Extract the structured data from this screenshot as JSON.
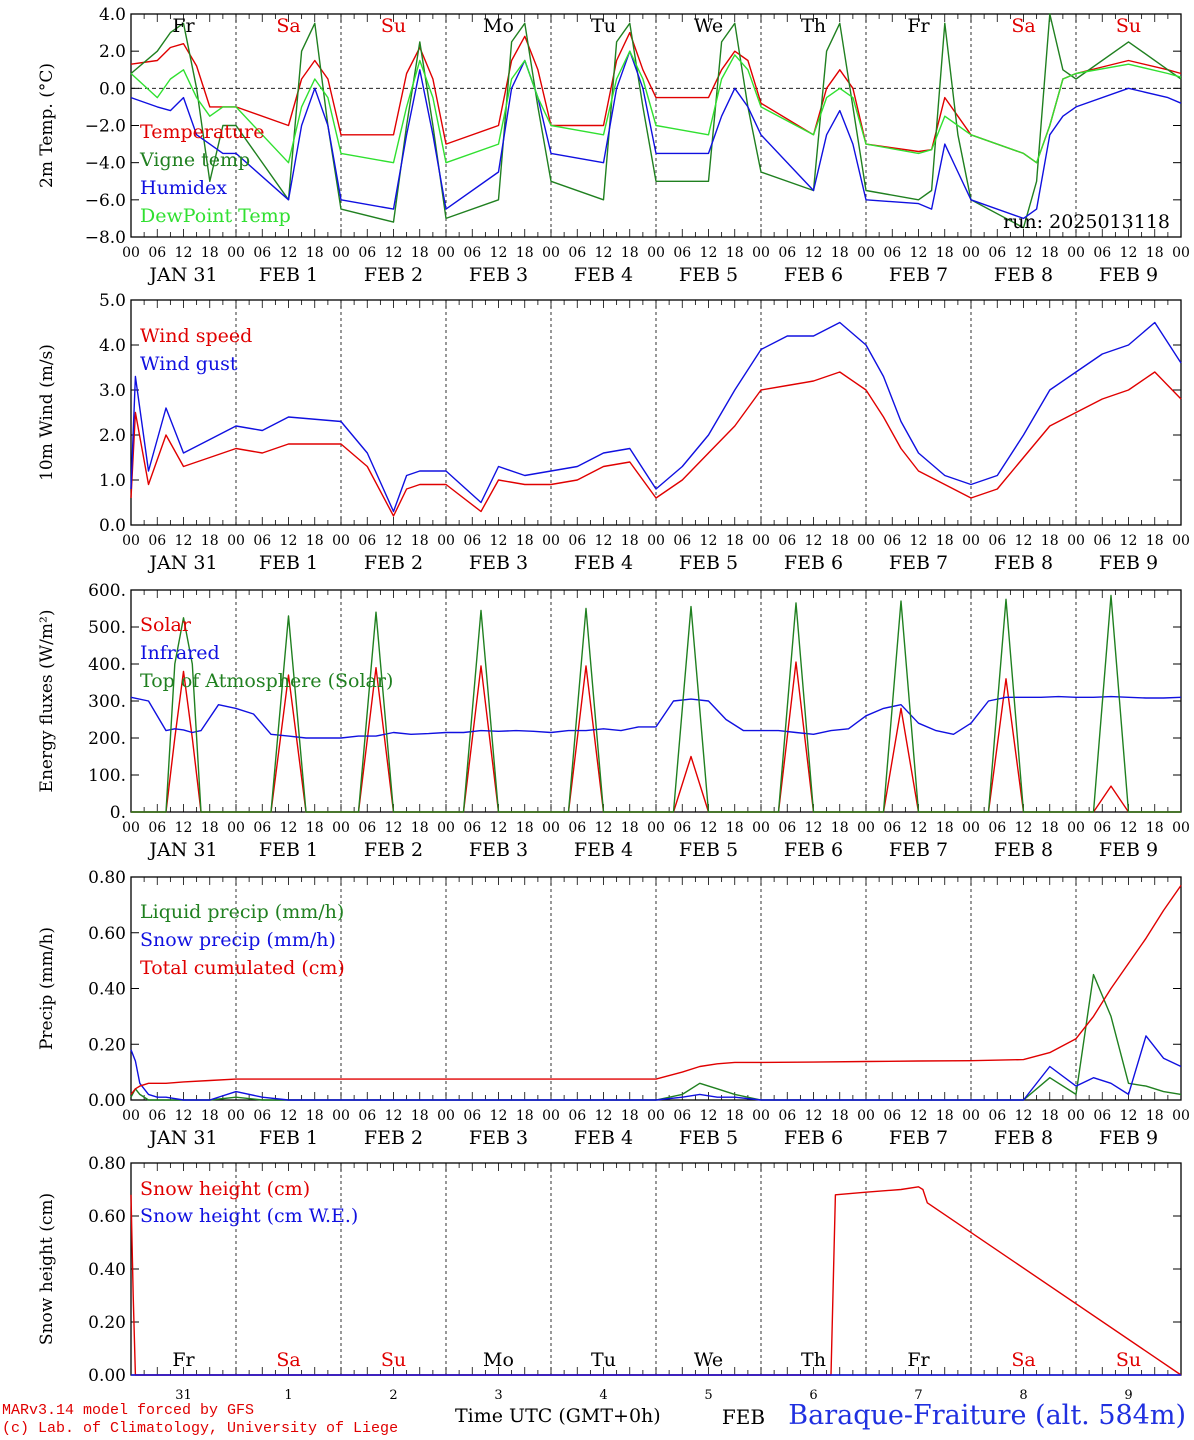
{
  "days": [
    "JAN 31",
    "FEB 1",
    "FEB 2",
    "FEB 3",
    "FEB 4",
    "FEB 5",
    "FEB 6",
    "FEB 7",
    "FEB 8",
    "FEB 9"
  ],
  "weekdays": [
    "Fr",
    "Sa",
    "Su",
    "Mo",
    "Tu",
    "We",
    "Th",
    "Fr",
    "Sa",
    "Su"
  ],
  "weekday_colors": [
    "#000000",
    "#e00000",
    "#e00000",
    "#000000",
    "#000000",
    "#000000",
    "#000000",
    "#000000",
    "#e00000",
    "#e00000"
  ],
  "hour_ticks": [
    "00",
    "06",
    "12",
    "18"
  ],
  "last_tick": "00",
  "bottom_day_numbers": [
    "31",
    "1",
    "2",
    "3",
    "4",
    "5",
    "6",
    "7",
    "8",
    "9"
  ],
  "bottom_month_label": "FEB",
  "run_label": "run: 2025013118",
  "x_title": "Time UTC (GMT+0h)",
  "footer_model": "MARv3.14 model forced by GFS",
  "footer_credit": "(c) Lab. of Climatology, University of Liege",
  "station": "Baraque-Fraiture (alt. 584m)",
  "colors": {
    "red": "#e00000",
    "green": "#208020",
    "blue": "#1010e0",
    "lightgreen": "#30e030"
  },
  "chart_data": [
    {
      "type": "line",
      "ylabel": "2m Temp. (°C)",
      "ylim": [
        -8,
        4
      ],
      "yticks": [
        -8,
        -6,
        -4,
        -2,
        0,
        2,
        4
      ],
      "ytick_labels": [
        "−8.0",
        "−6.0",
        "−4.0",
        "−2.0",
        "0.0",
        "2.0",
        "4.0"
      ],
      "zero_line": true,
      "x_hours": [
        0,
        6,
        9,
        12,
        15,
        18,
        21,
        24,
        36,
        39,
        42,
        45,
        48,
        60,
        63,
        66,
        69,
        72,
        84,
        87,
        90,
        93,
        96,
        108,
        111,
        114,
        117,
        120,
        132,
        135,
        138,
        141,
        144,
        156,
        159,
        162,
        165,
        168,
        180,
        183,
        186,
        189,
        192,
        204,
        207,
        210,
        213,
        216,
        228,
        237,
        240
      ],
      "series": [
        {
          "name": "Temperature",
          "color": "red",
          "values": [
            1.3,
            1.5,
            2.2,
            2.4,
            1.2,
            -1.0,
            -1.0,
            -1.0,
            -2.0,
            0.5,
            1.5,
            0.5,
            -2.5,
            -2.5,
            0.8,
            2.2,
            0.5,
            -3.0,
            -2.0,
            1.5,
            2.8,
            1.0,
            -2.0,
            -2.0,
            1.5,
            3.0,
            1.0,
            -0.5,
            -0.5,
            1.0,
            2.0,
            1.5,
            -0.8,
            -2.5,
            0.0,
            1.0,
            0.0,
            -3.0,
            -3.4,
            -3.3,
            -0.5,
            -1.5,
            -2.5,
            -3.5,
            -4.0,
            -2.0,
            0.5,
            0.8,
            1.5,
            1.0,
            0.8
          ]
        },
        {
          "name": "Vigne temp",
          "color": "green",
          "values": [
            0.8,
            2.0,
            3.0,
            3.5,
            0.0,
            -5.0,
            -2.0,
            -2.0,
            -6.0,
            2.0,
            3.5,
            -2.0,
            -6.5,
            -7.2,
            -2.0,
            2.5,
            -2.0,
            -7.0,
            -6.0,
            2.5,
            3.5,
            -1.0,
            -5.0,
            -6.0,
            2.5,
            3.5,
            -1.0,
            -5.0,
            -5.0,
            2.5,
            3.5,
            -1.0,
            -4.5,
            -5.5,
            2.0,
            3.5,
            -1.0,
            -5.5,
            -6.0,
            -5.5,
            3.5,
            -2.5,
            -6.0,
            -7.5,
            -5.0,
            4.0,
            1.0,
            0.5,
            2.5,
            1.0,
            0.5
          ]
        },
        {
          "name": "Humidex",
          "color": "blue",
          "values": [
            -0.5,
            -1.0,
            -1.2,
            -0.5,
            -2.5,
            -3.0,
            -3.5,
            -3.5,
            -6.0,
            -2.0,
            0.0,
            -2.0,
            -6.0,
            -6.5,
            -2.5,
            1.0,
            -2.5,
            -6.5,
            -4.5,
            0.0,
            1.5,
            -0.5,
            -3.5,
            -4.0,
            0.0,
            2.0,
            0.0,
            -3.5,
            -3.5,
            -1.5,
            0.0,
            -1.0,
            -2.5,
            -5.5,
            -2.5,
            -1.2,
            -3.0,
            -6.0,
            -6.2,
            -6.5,
            -3.0,
            -4.5,
            -6.0,
            -7.0,
            -6.5,
            -2.5,
            -1.5,
            -1.0,
            0.0,
            -0.5,
            -0.8
          ]
        },
        {
          "name": "DewPoint Temp",
          "color": "lightgreen",
          "values": [
            0.8,
            -0.5,
            0.5,
            1.0,
            -0.5,
            -1.5,
            -1.0,
            -1.0,
            -4.0,
            -1.0,
            0.5,
            -0.5,
            -3.5,
            -4.0,
            -1.0,
            1.5,
            -0.5,
            -4.0,
            -3.0,
            0.5,
            1.5,
            -0.5,
            -2.0,
            -2.5,
            0.5,
            2.0,
            0.5,
            -2.0,
            -2.5,
            0.5,
            1.8,
            1.0,
            -1.0,
            -2.5,
            -0.5,
            0.0,
            -0.5,
            -3.0,
            -3.5,
            -3.3,
            -1.5,
            -2.0,
            -2.5,
            -3.5,
            -4.0,
            -2.0,
            0.5,
            0.8,
            1.3,
            0.8,
            0.6
          ]
        }
      ],
      "annotations": [
        "run: 2025013118"
      ]
    },
    {
      "type": "line",
      "ylabel": "10m Wind (m/s)",
      "ylim": [
        0,
        5
      ],
      "yticks": [
        0,
        1,
        2,
        3,
        4,
        5
      ],
      "ytick_labels": [
        "0.0",
        "1.0",
        "2.0",
        "3.0",
        "4.0",
        "5.0"
      ],
      "x_hours": [
        0,
        1,
        4,
        8,
        12,
        18,
        24,
        30,
        36,
        48,
        54,
        60,
        63,
        66,
        72,
        80,
        84,
        90,
        96,
        102,
        108,
        114,
        120,
        126,
        132,
        138,
        144,
        150,
        156,
        162,
        168,
        172,
        176,
        180,
        186,
        192,
        198,
        204,
        210,
        216,
        222,
        228,
        234,
        240
      ],
      "series": [
        {
          "name": "Wind speed",
          "color": "red",
          "values": [
            0.6,
            2.5,
            0.9,
            2.0,
            1.3,
            1.5,
            1.7,
            1.6,
            1.8,
            1.8,
            1.3,
            0.2,
            0.8,
            0.9,
            0.9,
            0.3,
            1.0,
            0.9,
            0.9,
            1.0,
            1.3,
            1.4,
            0.6,
            1.0,
            1.6,
            2.2,
            3.0,
            3.1,
            3.2,
            3.4,
            3.0,
            2.4,
            1.7,
            1.2,
            0.9,
            0.6,
            0.8,
            1.5,
            2.2,
            2.5,
            2.8,
            3.0,
            3.4,
            2.8
          ]
        },
        {
          "name": "Wind gust",
          "color": "blue",
          "values": [
            0.8,
            3.3,
            1.2,
            2.6,
            1.6,
            1.9,
            2.2,
            2.1,
            2.4,
            2.3,
            1.6,
            0.3,
            1.1,
            1.2,
            1.2,
            0.5,
            1.3,
            1.1,
            1.2,
            1.3,
            1.6,
            1.7,
            0.8,
            1.3,
            2.0,
            3.0,
            3.9,
            4.2,
            4.2,
            4.5,
            4.0,
            3.3,
            2.3,
            1.6,
            1.1,
            0.9,
            1.1,
            2.0,
            3.0,
            3.4,
            3.8,
            4.0,
            4.5,
            3.6
          ]
        }
      ]
    },
    {
      "type": "line",
      "ylabel": "Energy fluxes (W/m²)",
      "ylim": [
        0,
        600
      ],
      "yticks": [
        0,
        100,
        200,
        300,
        400,
        500,
        600
      ],
      "ytick_labels": [
        "0.",
        "100.",
        "200.",
        "300.",
        "400.",
        "500.",
        "600."
      ],
      "x_hours": [
        0,
        4,
        8,
        10,
        12,
        14,
        16,
        20,
        24,
        28,
        32,
        36,
        40,
        44,
        48,
        52,
        56,
        60,
        64,
        68,
        72,
        76,
        80,
        84,
        88,
        92,
        96,
        100,
        104,
        108,
        112,
        116,
        120,
        124,
        128,
        132,
        136,
        140,
        144,
        148,
        152,
        156,
        160,
        164,
        168,
        172,
        176,
        180,
        184,
        188,
        192,
        196,
        200,
        204,
        208,
        212,
        216,
        220,
        224,
        228,
        232,
        236,
        240
      ],
      "series": [
        {
          "name": "Solar",
          "color": "red",
          "values": [
            0,
            0,
            0,
            200,
            380,
            200,
            0,
            0,
            0,
            0,
            0,
            370,
            0,
            0,
            0,
            0,
            390,
            0,
            0,
            0,
            0,
            0,
            395,
            0,
            0,
            0,
            0,
            0,
            395,
            0,
            0,
            0,
            0,
            0,
            150,
            0,
            0,
            0,
            0,
            0,
            405,
            0,
            0,
            0,
            0,
            0,
            280,
            0,
            0,
            0,
            0,
            0,
            360,
            0,
            0,
            0,
            0,
            0,
            70,
            0,
            0,
            0,
            0
          ]
        },
        {
          "name": "Infrared",
          "color": "blue",
          "values": [
            310,
            300,
            220,
            225,
            222,
            215,
            220,
            290,
            280,
            265,
            210,
            205,
            200,
            200,
            200,
            205,
            205,
            215,
            210,
            212,
            215,
            215,
            220,
            218,
            220,
            218,
            215,
            220,
            220,
            225,
            220,
            230,
            230,
            300,
            305,
            300,
            250,
            220,
            220,
            220,
            215,
            210,
            220,
            225,
            260,
            280,
            290,
            240,
            220,
            210,
            240,
            300,
            310,
            310,
            310,
            312,
            310,
            310,
            312,
            310,
            308,
            308,
            310
          ]
        },
        {
          "name": "Top of Atmosphere (Solar)",
          "color": "green",
          "values": [
            0,
            0,
            0,
            400,
            525,
            400,
            0,
            0,
            0,
            0,
            0,
            530,
            0,
            0,
            0,
            0,
            540,
            0,
            0,
            0,
            0,
            0,
            545,
            0,
            0,
            0,
            0,
            0,
            550,
            0,
            0,
            0,
            0,
            0,
            555,
            0,
            0,
            0,
            0,
            0,
            565,
            0,
            0,
            0,
            0,
            0,
            570,
            0,
            0,
            0,
            0,
            0,
            575,
            0,
            0,
            0,
            0,
            0,
            585,
            0,
            0,
            0,
            0
          ]
        }
      ]
    },
    {
      "type": "line",
      "ylabel": "Precip (mm/h)",
      "ylim": [
        0,
        0.8
      ],
      "yticks": [
        0,
        0.2,
        0.4,
        0.6,
        0.8
      ],
      "ytick_labels": [
        "0.00",
        "0.20",
        "0.40",
        "0.60",
        "0.80"
      ],
      "x_hours": [
        0,
        1,
        2,
        4,
        6,
        8,
        12,
        18,
        24,
        30,
        36,
        48,
        60,
        72,
        84,
        96,
        108,
        120,
        126,
        130,
        134,
        138,
        144,
        156,
        168,
        180,
        192,
        204,
        210,
        216,
        220,
        224,
        228,
        232,
        236,
        240
      ],
      "series": [
        {
          "name": "Liquid precip (mm/h)",
          "color": "green",
          "values": [
            0.01,
            0.04,
            0.02,
            0,
            0,
            0,
            0,
            0,
            0.01,
            0,
            0,
            0,
            0,
            0,
            0,
            0,
            0,
            0,
            0.02,
            0.06,
            0.04,
            0.02,
            0,
            0,
            0,
            0,
            0,
            0,
            0.08,
            0.02,
            0.45,
            0.3,
            0.06,
            0.05,
            0.03,
            0.02
          ]
        },
        {
          "name": "Snow precip (mm/h)",
          "color": "blue",
          "values": [
            0.18,
            0.14,
            0.06,
            0.02,
            0.01,
            0.01,
            0,
            0,
            0.03,
            0.01,
            0,
            0,
            0,
            0,
            0,
            0,
            0,
            0,
            0.01,
            0.02,
            0.01,
            0.01,
            0,
            0,
            0,
            0,
            0,
            0,
            0.12,
            0.05,
            0.08,
            0.06,
            0.02,
            0.23,
            0.15,
            0.12
          ]
        },
        {
          "name": "Total cumulated (cm)",
          "color": "red",
          "values": [
            0.02,
            0.04,
            0.05,
            0.06,
            0.06,
            0.06,
            0.065,
            0.07,
            0.075,
            0.075,
            0.075,
            0.075,
            0.075,
            0.075,
            0.075,
            0.075,
            0.075,
            0.075,
            0.1,
            0.12,
            0.13,
            0.135,
            0.135,
            0.136,
            0.138,
            0.14,
            0.141,
            0.145,
            0.17,
            0.22,
            0.3,
            0.4,
            0.49,
            0.58,
            0.68,
            0.77
          ]
        }
      ]
    },
    {
      "type": "line",
      "ylabel": "Snow height (cm)",
      "ylim": [
        0,
        0.8
      ],
      "yticks": [
        0,
        0.2,
        0.4,
        0.6,
        0.8
      ],
      "ytick_labels": [
        "0.00",
        "0.20",
        "0.40",
        "0.60",
        "0.80"
      ],
      "x_hours": [
        0,
        0.5,
        1,
        160,
        161,
        168,
        176,
        180,
        181,
        182,
        240
      ],
      "series": [
        {
          "name": "Snow height (cm)",
          "color": "red",
          "values": [
            0.68,
            0.3,
            0,
            0,
            0.68,
            0.69,
            0.7,
            0.71,
            0.7,
            0.65,
            0
          ]
        },
        {
          "name": "Snow height (cm W.E.)",
          "color": "blue",
          "values": [
            0,
            0,
            0,
            0,
            0,
            0,
            0,
            0,
            0,
            0,
            0
          ]
        }
      ]
    }
  ]
}
